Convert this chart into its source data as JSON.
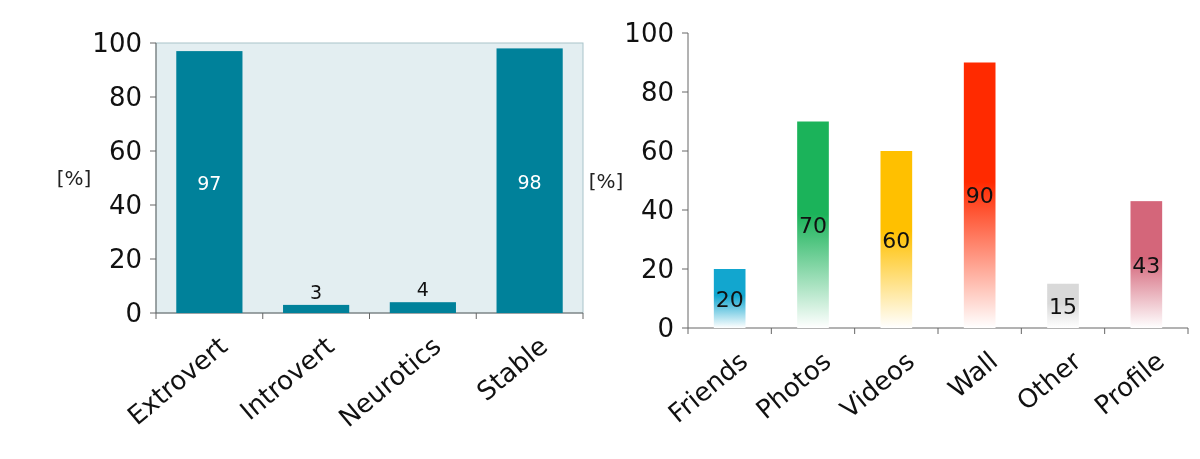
{
  "chart_data": [
    {
      "type": "bar",
      "ylabel": "[%]",
      "categories": [
        "Extrovert",
        "Introvert",
        "Neurotics",
        "Stable"
      ],
      "values": [
        97,
        3,
        4,
        98
      ],
      "color": "#00819a",
      "ylim": [
        0,
        100
      ],
      "yticks": [
        0,
        20,
        40,
        60,
        80,
        100
      ],
      "data_labels": true
    },
    {
      "type": "bar",
      "ylabel": "[%]",
      "categories": [
        "Friends",
        "Photos",
        "Videos",
        "Wall",
        "Other",
        "Profile"
      ],
      "values": [
        20,
        70,
        60,
        90,
        15,
        43
      ],
      "colors": [
        "#12a6cf",
        "#1bb35a",
        "#ffc000",
        "#ff2a00",
        "#d9d9d9",
        "#d4667a"
      ],
      "ylim": [
        0,
        100
      ],
      "yticks": [
        0,
        20,
        40,
        60,
        80,
        100
      ],
      "data_labels": true
    }
  ]
}
